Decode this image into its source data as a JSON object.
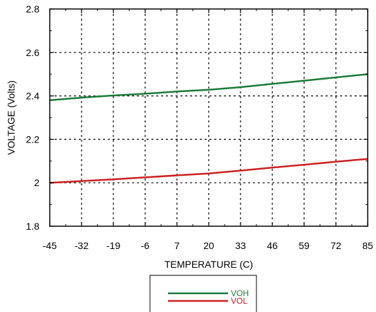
{
  "chart_data": {
    "type": "line",
    "xlabel": "TEMPERATURE (C)",
    "ylabel": "VOLTAGE (Volts)",
    "categories": [
      "-45",
      "-32",
      "-19",
      "-6",
      "7",
      "20",
      "33",
      "46",
      "59",
      "72",
      "85"
    ],
    "x": [
      -45,
      -32,
      -19,
      -6,
      7,
      20,
      33,
      46,
      59,
      72,
      85
    ],
    "y_ticks": [
      "1.8",
      "2",
      "2.2",
      "2.4",
      "2.6",
      "2.8"
    ],
    "ylim": [
      1.8,
      2.8
    ],
    "xlim": [
      -45,
      85
    ],
    "grid": true,
    "legend_position": "bottom-center",
    "series": [
      {
        "name": "VOH",
        "color": "#1a7a3a",
        "values": [
          2.38,
          2.392,
          2.402,
          2.41,
          2.42,
          2.428,
          2.44,
          2.455,
          2.47,
          2.485,
          2.5
        ]
      },
      {
        "name": "VOL",
        "color": "#cc2020",
        "values": [
          2.0,
          2.008,
          2.016,
          2.025,
          2.034,
          2.043,
          2.056,
          2.07,
          2.083,
          2.097,
          2.11
        ]
      }
    ]
  }
}
